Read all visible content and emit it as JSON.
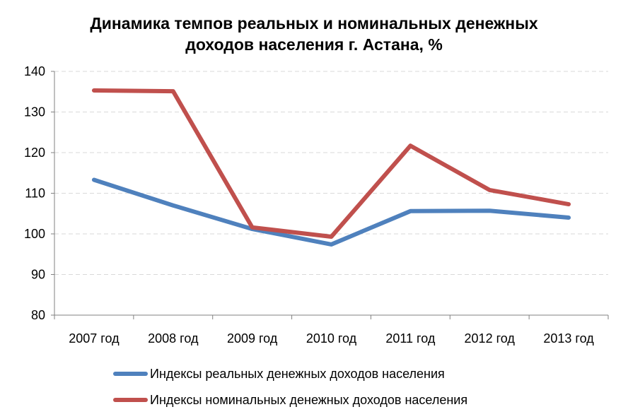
{
  "chart_data": {
    "type": "line",
    "title_line1": "Динамика темпов реальных и номинальных денежных",
    "title_line2": "доходов населения г. Астана, %",
    "categories": [
      "2007 год",
      "2008 год",
      "2009 год",
      "2010 год",
      "2011 год",
      "2012 год",
      "2013 год"
    ],
    "series": [
      {
        "name": "Индексы реальных денежных доходов населения",
        "color": "#4F81BD",
        "values": [
          113.3,
          107.0,
          101.2,
          97.4,
          105.6,
          105.7,
          104.0
        ]
      },
      {
        "name": "Индексы номинальных денежных доходов населения",
        "color": "#C0504D",
        "values": [
          135.3,
          135.1,
          101.6,
          99.3,
          121.7,
          110.8,
          107.3
        ]
      }
    ],
    "ylim": [
      80,
      140
    ],
    "yticks": [
      80,
      90,
      100,
      110,
      120,
      130,
      140
    ],
    "grid": true,
    "legend_position": "bottom"
  }
}
